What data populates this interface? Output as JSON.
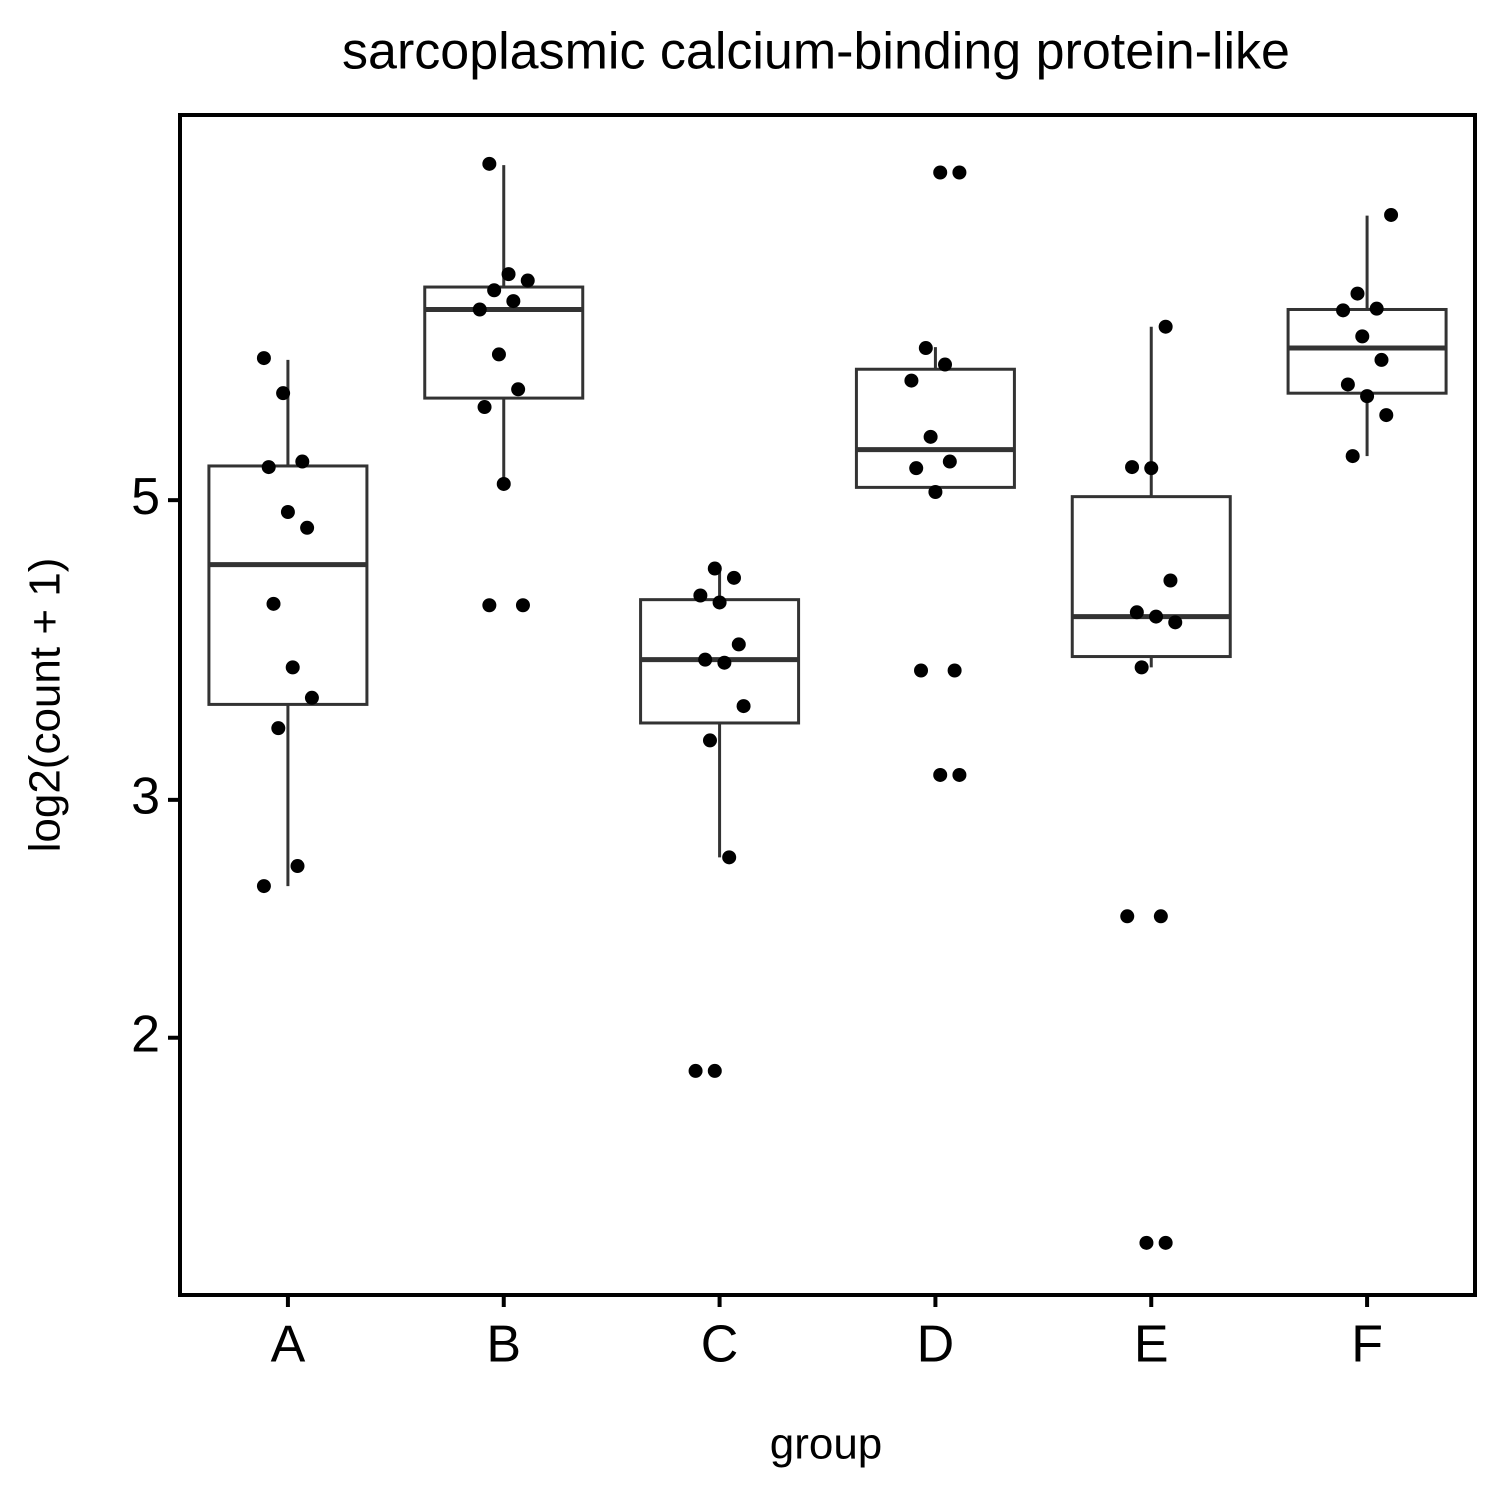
{
  "chart_data": {
    "type": "box",
    "title": "sarcoplasmic calcium-binding protein-like",
    "x_label": "group",
    "y_label": "log2(count + 1)",
    "categories": [
      "A",
      "B",
      "C",
      "D",
      "E",
      "F"
    ],
    "ylim": [
      1.29,
      9.64
    ],
    "yticks": [
      2,
      3,
      5
    ],
    "ylog": true,
    "box_color": "#333333",
    "point_color": "#000000",
    "boxes": [
      {
        "min": 2.59,
        "q1": 3.53,
        "median": 4.48,
        "q3": 5.3,
        "max": 6.35,
        "points": [
          6.37,
          6.0,
          5.34,
          5.29,
          4.9,
          4.77,
          4.19,
          3.76,
          3.57,
          3.39,
          2.68,
          2.59
        ]
      },
      {
        "min": 5.15,
        "q1": 5.95,
        "median": 6.92,
        "q3": 7.19,
        "max": 8.85,
        "points": [
          8.87,
          7.35,
          7.27,
          7.15,
          7.02,
          6.92,
          6.41,
          6.04,
          5.86,
          5.14,
          4.18,
          4.18
        ]
      },
      {
        "min": 2.72,
        "q1": 3.42,
        "median": 3.81,
        "q3": 4.22,
        "max": 4.45,
        "points": [
          4.45,
          4.38,
          4.25,
          4.2,
          3.91,
          3.81,
          3.79,
          3.52,
          3.32,
          2.72,
          1.89,
          1.89
        ]
      },
      {
        "min": 5.08,
        "q1": 5.11,
        "median": 5.45,
        "q3": 6.25,
        "max": 6.49,
        "points": [
          8.74,
          8.74,
          6.48,
          6.3,
          6.13,
          5.57,
          5.34,
          5.28,
          5.07,
          3.74,
          3.74,
          3.13,
          3.13
        ]
      },
      {
        "min": 3.76,
        "q1": 3.83,
        "median": 4.1,
        "q3": 5.03,
        "max": 6.72,
        "points": [
          6.72,
          5.29,
          5.28,
          4.36,
          4.13,
          4.1,
          4.06,
          3.76,
          2.46,
          2.46,
          1.41,
          1.41
        ]
      },
      {
        "min": 5.39,
        "q1": 6.0,
        "median": 6.48,
        "q3": 6.92,
        "max": 8.12,
        "points": [
          8.13,
          7.11,
          6.93,
          6.91,
          6.61,
          6.35,
          6.09,
          5.97,
          5.78,
          5.39
        ]
      }
    ]
  }
}
